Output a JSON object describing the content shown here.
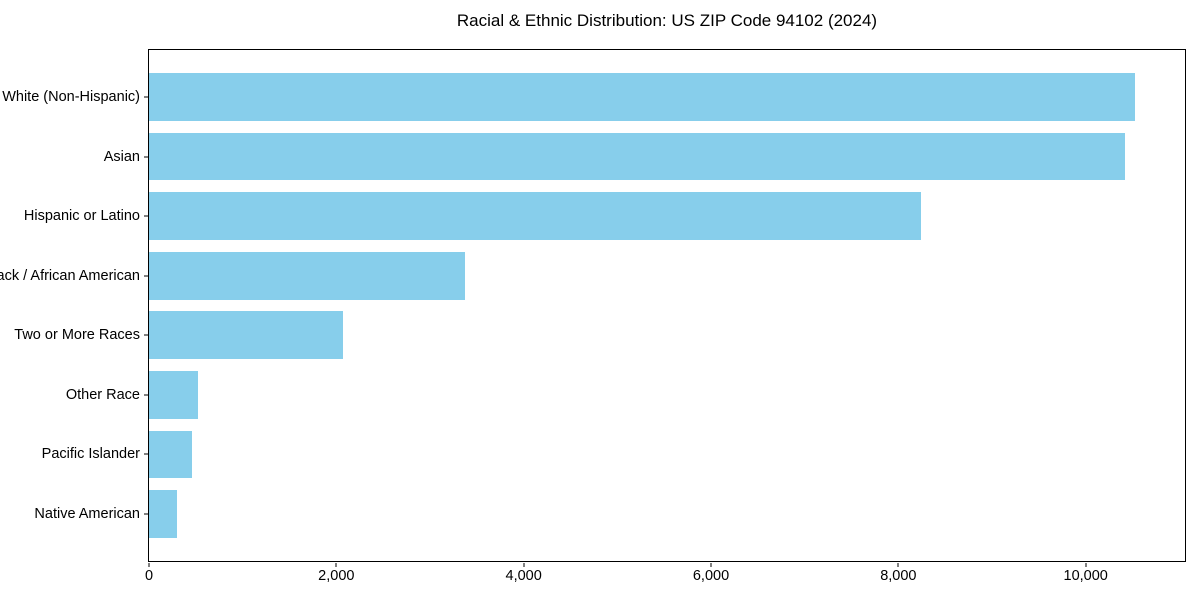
{
  "chart_data": {
    "type": "bar",
    "orientation": "horizontal",
    "title": "Racial & Ethnic Distribution: US ZIP Code 94102 (2024)",
    "categories": [
      "White (Non-Hispanic)",
      "Asian",
      "Hispanic or Latino",
      "Black / African American",
      "Two or More Races",
      "Other Race",
      "Pacific Islander",
      "Native American"
    ],
    "values": [
      10530,
      10420,
      8240,
      3370,
      2070,
      520,
      460,
      300
    ],
    "xlabel": "",
    "ylabel": "",
    "xlim": [
      0,
      11060
    ],
    "xticks": [
      0,
      2000,
      4000,
      6000,
      8000,
      10000
    ],
    "xtick_labels": [
      "0",
      "2,000",
      "4,000",
      "6,000",
      "8,000",
      "10,000"
    ],
    "bar_color": "#87CEEB",
    "bar_thickness": 0.8,
    "grid": false,
    "legend": null,
    "spine_color": "#000000"
  }
}
